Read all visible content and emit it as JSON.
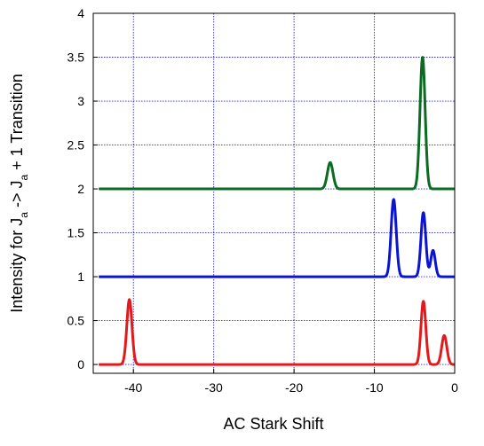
{
  "chart_data": {
    "type": "line",
    "title": "",
    "xlabel": "AC Stark Shift",
    "ylabel_parts": {
      "main_1": "Intensity for J",
      "sub_1": "a",
      "main_2": " -> J",
      "sub_2": "a",
      "main_3": " + 1 Transition"
    },
    "xlim": [
      -45,
      0
    ],
    "ylim": [
      -0.1,
      4
    ],
    "xticks": [
      -40,
      -30,
      -20,
      -10,
      0
    ],
    "xtick_labels": [
      "-40",
      "-30",
      "-20",
      "-10",
      "0"
    ],
    "yticks": [
      0,
      0.5,
      1,
      1.5,
      2,
      2.5,
      3,
      3.5,
      4
    ],
    "ytick_labels": [
      "0",
      "0.5",
      "1",
      "1.5",
      "2",
      "2.5",
      "3",
      "3.5",
      "4"
    ],
    "grid": true,
    "legend": false,
    "series": [
      {
        "color": "#e31a1c",
        "baseline": 0,
        "peaks": [
          {
            "center": -40.5,
            "height": 0.74,
            "width": 0.32
          },
          {
            "center": -3.9,
            "height": 0.72,
            "width": 0.3
          },
          {
            "center": -1.3,
            "height": 0.33,
            "width": 0.32
          }
        ]
      },
      {
        "color": "#0a14d2",
        "baseline": 1,
        "peaks": [
          {
            "center": -7.6,
            "height": 0.88,
            "width": 0.32
          },
          {
            "center": -3.9,
            "height": 0.73,
            "width": 0.3
          },
          {
            "center": -2.7,
            "height": 0.3,
            "width": 0.28
          }
        ]
      },
      {
        "color": "#0b6b20",
        "baseline": 2,
        "peaks": [
          {
            "center": -15.5,
            "height": 0.3,
            "width": 0.35
          },
          {
            "center": -4.0,
            "height": 1.5,
            "width": 0.32
          }
        ]
      }
    ]
  }
}
